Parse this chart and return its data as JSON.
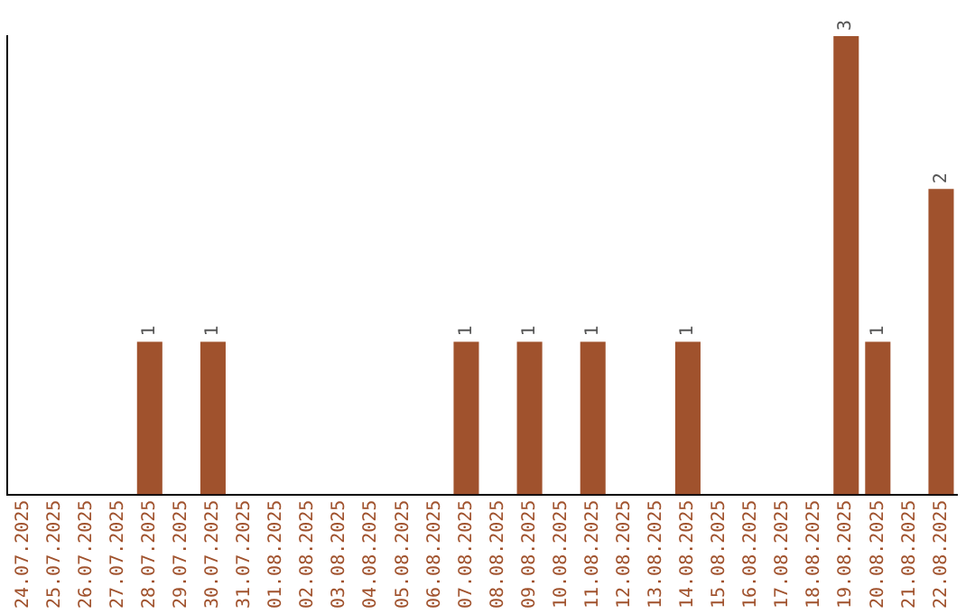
{
  "chart_data": {
    "type": "bar",
    "categories": [
      "24.07.2025",
      "25.07.2025",
      "26.07.2025",
      "27.07.2025",
      "28.07.2025",
      "29.07.2025",
      "30.07.2025",
      "31.07.2025",
      "01.08.2025",
      "02.08.2025",
      "03.08.2025",
      "04.08.2025",
      "05.08.2025",
      "06.08.2025",
      "07.08.2025",
      "08.08.2025",
      "09.08.2025",
      "10.08.2025",
      "11.08.2025",
      "12.08.2025",
      "13.08.2025",
      "14.08.2025",
      "15.08.2025",
      "16.08.2025",
      "17.08.2025",
      "18.08.2025",
      "19.08.2025",
      "20.08.2025",
      "21.08.2025",
      "22.08.2025"
    ],
    "values": [
      0,
      0,
      0,
      0,
      1,
      0,
      1,
      0,
      0,
      0,
      0,
      0,
      0,
      0,
      1,
      0,
      1,
      0,
      1,
      0,
      0,
      1,
      0,
      0,
      0,
      0,
      3,
      1,
      0,
      2
    ],
    "value_labels": [
      null,
      null,
      null,
      null,
      "1",
      null,
      "1",
      null,
      null,
      null,
      null,
      null,
      null,
      null,
      "1",
      null,
      "1",
      null,
      "1",
      null,
      null,
      "1",
      null,
      null,
      null,
      null,
      "3",
      "1",
      null,
      "2"
    ],
    "color": "#a0522d",
    "tick_labels": "x",
    "grid": false,
    "legend": false
  }
}
